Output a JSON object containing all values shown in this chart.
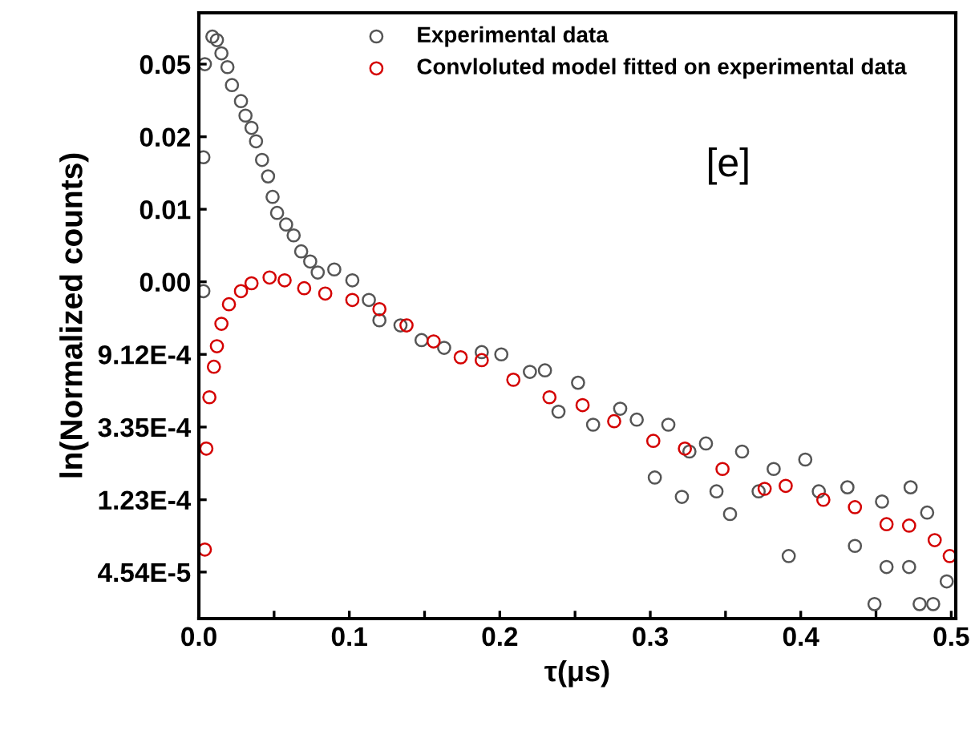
{
  "chart_data": {
    "type": "scatter",
    "xlabel": "τ(μs)",
    "ylabel": "ln(Normalized counts)",
    "annotations": [
      "[e]"
    ],
    "log": "y",
    "xlim": [
      0,
      0.503
    ],
    "ylim": [
      2.39e-05,
      0.101
    ],
    "xticks": [
      {
        "value": 0,
        "label": "0.0"
      },
      {
        "value": 0.05,
        "label": null
      },
      {
        "value": 0.1,
        "label": "0.1"
      },
      {
        "value": 0.15,
        "label": null
      },
      {
        "value": 0.2,
        "label": "0.2"
      },
      {
        "value": 0.25,
        "label": null
      },
      {
        "value": 0.3,
        "label": "0.3"
      },
      {
        "value": 0.35,
        "label": null
      },
      {
        "value": 0.4,
        "label": "0.4"
      },
      {
        "value": 0.45,
        "label": null
      },
      {
        "value": 0.5,
        "label": "0.5"
      }
    ],
    "yticks": [
      {
        "value": 0.0498,
        "label": "0.05"
      },
      {
        "value": 0.0183,
        "label": "0.02"
      },
      {
        "value": 0.00674,
        "label": "0.01"
      },
      {
        "value": 0.00248,
        "label": "0.00"
      },
      {
        "value": 0.000912,
        "label": "9.12E-4"
      },
      {
        "value": 0.000335,
        "label": "3.35E-4"
      },
      {
        "value": 0.000123,
        "label": "1.23E-4"
      },
      {
        "value": 4.54e-05,
        "label": "4.54E-5"
      }
    ],
    "legend": "top",
    "marker": "circle",
    "series": [
      {
        "name": "Experimental data",
        "color": "#555555",
        "x": [
          0.003,
          0.003,
          0.004,
          0.009,
          0.012,
          0.015,
          0.019,
          0.022,
          0.028,
          0.031,
          0.035,
          0.038,
          0.042,
          0.046,
          0.049,
          0.052,
          0.058,
          0.063,
          0.068,
          0.074,
          0.079,
          0.09,
          0.102,
          0.113,
          0.12,
          0.134,
          0.148,
          0.163,
          0.188,
          0.201,
          0.22,
          0.23,
          0.239,
          0.252,
          0.262,
          0.28,
          0.291,
          0.303,
          0.312,
          0.321,
          0.326,
          0.337,
          0.344,
          0.353,
          0.361,
          0.372,
          0.382,
          0.392,
          0.403,
          0.412,
          0.431,
          0.436,
          0.449,
          0.454,
          0.457,
          0.472,
          0.473,
          0.479,
          0.484,
          0.488,
          0.497
        ],
        "values": [
          0.00218,
          0.0138,
          0.0498,
          0.0728,
          0.0693,
          0.0578,
          0.0478,
          0.0373,
          0.0299,
          0.0245,
          0.0207,
          0.0172,
          0.0133,
          0.0106,
          0.00799,
          0.00641,
          0.00546,
          0.0047,
          0.00377,
          0.00328,
          0.00282,
          0.00294,
          0.00253,
          0.00193,
          0.00146,
          0.00136,
          0.00111,
          0.000998,
          0.000941,
          0.000912,
          0.000717,
          0.000732,
          0.000414,
          0.000617,
          0.000346,
          0.000431,
          0.000371,
          0.000167,
          0.000346,
          0.000128,
          0.000239,
          0.000267,
          0.000138,
          0.000101,
          0.000239,
          0.000138,
          0.000188,
          5.66e-05,
          0.000214,
          0.000138,
          0.000146,
          6.51e-05,
          2.92e-05,
          0.00012,
          4.87e-05,
          4.87e-05,
          0.000146,
          2.92e-05,
          0.000103,
          2.92e-05,
          3.99e-05
        ]
      },
      {
        "name": "Convloluted model fitted on experimental data",
        "color": "#d40000",
        "x": [
          0.004,
          0.005,
          0.007,
          0.01,
          0.012,
          0.015,
          0.02,
          0.028,
          0.035,
          0.047,
          0.057,
          0.07,
          0.084,
          0.102,
          0.12,
          0.138,
          0.156,
          0.174,
          0.188,
          0.209,
          0.233,
          0.255,
          0.276,
          0.302,
          0.323,
          0.348,
          0.376,
          0.39,
          0.415,
          0.436,
          0.457,
          0.472,
          0.489,
          0.499
        ],
        "values": [
          6.19e-05,
          0.000249,
          0.000505,
          0.000769,
          0.00102,
          0.00139,
          0.00182,
          0.00218,
          0.00243,
          0.00263,
          0.00253,
          0.00227,
          0.00211,
          0.00193,
          0.0017,
          0.00136,
          0.00109,
          0.000876,
          0.000842,
          0.000643,
          0.000505,
          0.000453,
          0.000363,
          0.000277,
          0.000249,
          0.000188,
          0.000143,
          0.000149,
          0.000123,
          0.000111,
          8.78e-05,
          8.61e-05,
          7.05e-05,
          5.66e-05
        ]
      }
    ]
  }
}
